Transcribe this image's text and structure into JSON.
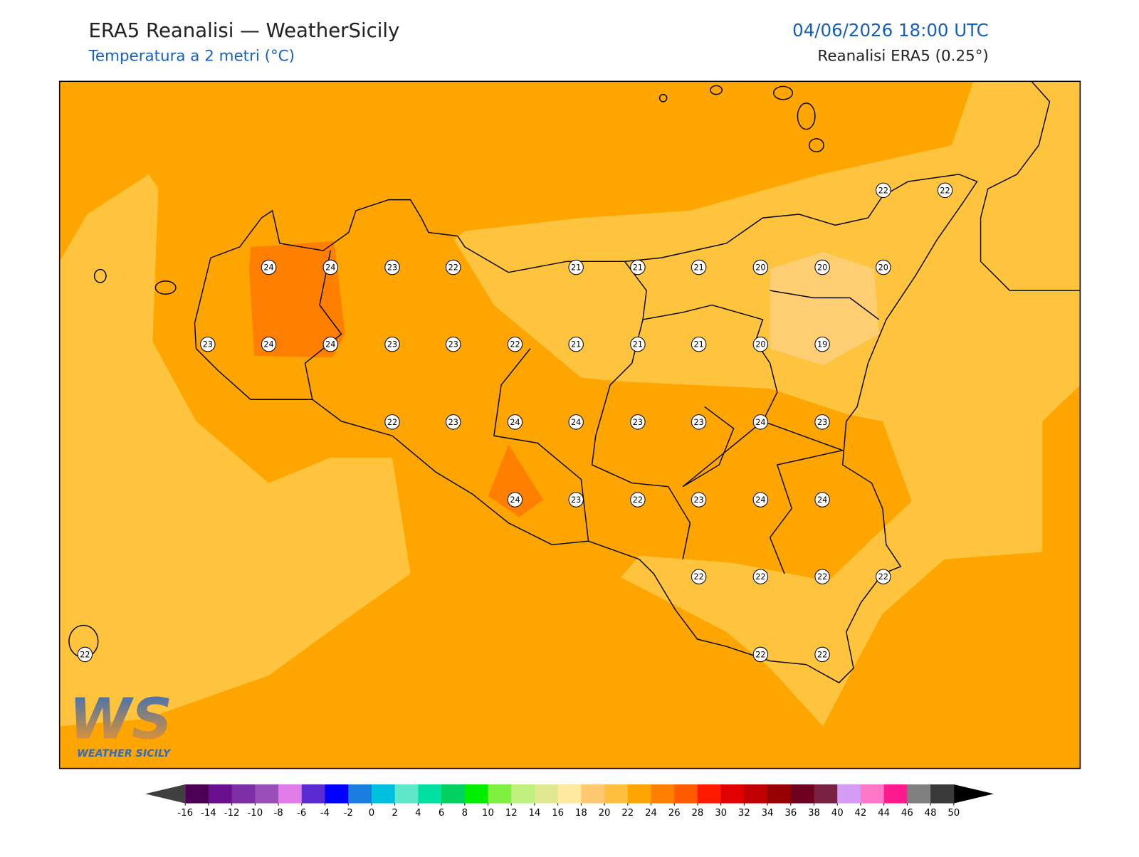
{
  "header": {
    "title": "ERA5 Reanalisi — WeatherSicily",
    "subtitle": "Temperatura a 2 metri (°C)",
    "datetime": "04/06/2026 18:00 UTC",
    "source": "Reanalisi ERA5 (0.25°)"
  },
  "map": {
    "points": [
      22,
      22,
      24,
      24,
      23,
      22,
      21,
      21,
      21,
      20,
      20,
      20,
      23,
      24,
      24,
      23,
      23,
      22,
      21,
      21,
      21,
      20,
      19,
      22,
      23,
      24,
      24,
      23,
      23,
      24,
      23,
      24,
      23,
      22,
      23,
      24,
      24,
      22,
      22,
      22,
      22,
      22,
      22,
      22
    ]
  },
  "colorbar": {
    "ticks": [
      -16,
      -14,
      -12,
      -10,
      -8,
      -6,
      -4,
      -2,
      0,
      2,
      4,
      6,
      8,
      10,
      12,
      14,
      16,
      18,
      20,
      22,
      24,
      26,
      28,
      30,
      32,
      34,
      36,
      38,
      40,
      42,
      44,
      46,
      48,
      50
    ],
    "colors": [
      "#4b0055",
      "#6a0f8e",
      "#7d2fa5",
      "#9a4fb8",
      "#e07be8",
      "#5a2bd0",
      "#0000ff",
      "#1a7ee0",
      "#00c0e0",
      "#5ee8c8",
      "#00e0a0",
      "#00d060",
      "#00ee00",
      "#7ef040",
      "#c0f080",
      "#e0e890",
      "#ffe8a0",
      "#ffc870",
      "#ffc040",
      "#ffa500",
      "#ff8000",
      "#ff5a00",
      "#ff1a00",
      "#e00000",
      "#c00000",
      "#960000",
      "#6e0020",
      "#7a2040",
      "#d49cf5",
      "#ff78c8",
      "#ff1a90",
      "#808080",
      "#3a3a3a"
    ],
    "under_color": "#404040",
    "over_color": "#000000"
  },
  "logo": {
    "mark": "WS",
    "name": "WEATHER SICILY"
  }
}
